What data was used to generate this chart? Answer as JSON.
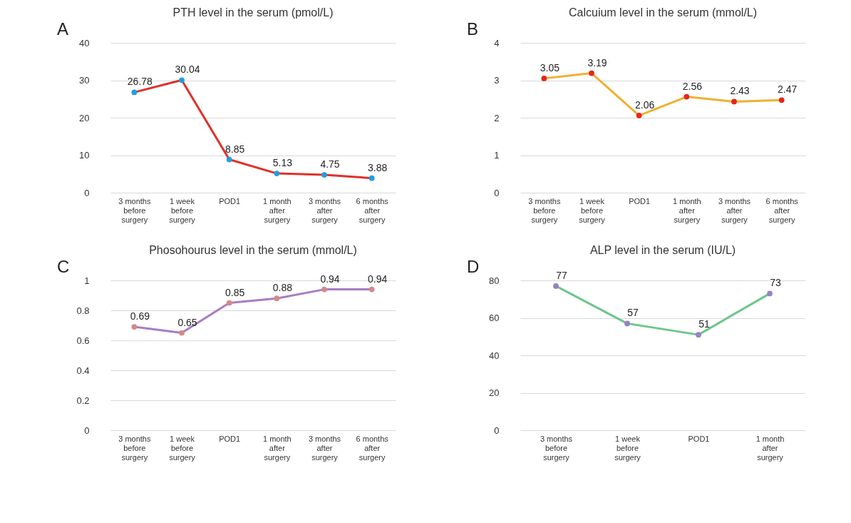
{
  "chart_data": [
    {
      "type": "line",
      "title": "PTH level in the serum (pmol/L)",
      "annotations": [
        "A"
      ],
      "categories": [
        "3 months before surgery",
        "1 week before surgery",
        "POD1",
        "1 month after surgery",
        "3 months after surgery",
        "6 months after surgery"
      ],
      "series": [
        {
          "color": "#e0302a",
          "colors": [
            "#1ea0e0",
            "#1ea0e0",
            "#1ea0e0",
            "#1ea0e0",
            "#1ea0e0",
            "#1ea0e0"
          ],
          "values": [
            26.78,
            30.04,
            8.85,
            5.13,
            4.75,
            3.88
          ]
        }
      ],
      "ylim": [
        0,
        40
      ],
      "yticks": [
        0,
        10,
        20,
        30,
        40
      ],
      "grid": "y",
      "marker": "circle",
      "line_style": "solid",
      "data_labels": true
    },
    {
      "type": "line",
      "title": "Calcuium level in the serum (mmol/L)",
      "annotations": [
        "B"
      ],
      "categories": [
        "3 months before surgery",
        "1 week before surgery",
        "POD1",
        "1 month after surgery",
        "3 months after surgery",
        "6 months after surgery"
      ],
      "series": [
        {
          "color": "#f0b030",
          "colors": [
            "#e8241c",
            "#e8241c",
            "#e8241c",
            "#e8241c",
            "#e8241c",
            "#e8241c"
          ],
          "values": [
            3.05,
            3.19,
            2.06,
            2.56,
            2.43,
            2.47
          ]
        }
      ],
      "ylim": [
        0,
        4
      ],
      "yticks": [
        0,
        1,
        2,
        3,
        4
      ],
      "grid": "y",
      "marker": "circle",
      "line_style": "solid",
      "data_labels": true
    },
    {
      "type": "line",
      "title": "Phosohourus level in the serum (mmol/L)",
      "annotations": [
        "C"
      ],
      "categories": [
        "3 months before surgery",
        "1 week before surgery",
        "POD1",
        "1 month after surgery",
        "3 months after surgery",
        "6 months after surgery"
      ],
      "series": [
        {
          "color": "#a87cc4",
          "colors": [
            "#d48a86",
            "#d48a86",
            "#d48a86",
            "#d48a86",
            "#d48a86",
            "#d48a86"
          ],
          "values": [
            0.69,
            0.65,
            0.85,
            0.88,
            0.94,
            0.94
          ]
        }
      ],
      "ylim": [
        0,
        1
      ],
      "yticks": [
        0,
        0.2,
        0.4,
        0.6,
        0.8,
        1
      ],
      "grid": "y",
      "marker": "circle",
      "line_style": "solid",
      "data_labels": true
    },
    {
      "type": "line",
      "title": "ALP level in the serum (IU/L)",
      "annotations": [
        "D"
      ],
      "categories": [
        "3 months before surgery",
        "1 week before surgery",
        "POD1",
        "1 month after surgery"
      ],
      "series": [
        {
          "color": "#6cc68a",
          "colors": [
            "#9a80c4",
            "#9a80c4",
            "#9a80c4",
            "#9a80c4"
          ],
          "values": [
            77,
            57,
            51,
            73
          ]
        }
      ],
      "ylim": [
        0,
        80
      ],
      "yticks": [
        0,
        20,
        40,
        60,
        80
      ],
      "grid": "y",
      "marker": "circle",
      "line_style": "solid",
      "data_labels": true
    }
  ]
}
